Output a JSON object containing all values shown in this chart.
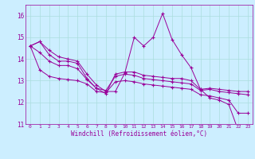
{
  "background_color": "#cceeff",
  "grid_color": "#aadddd",
  "line_color": "#990099",
  "marker": "+",
  "xlabel": "Windchill (Refroidissement éolien,°C)",
  "xlabel_color": "#990099",
  "xlim": [
    -0.5,
    23.5
  ],
  "ylim": [
    11,
    16.5
  ],
  "yticks": [
    11,
    12,
    13,
    14,
    15,
    16
  ],
  "xticks": [
    0,
    1,
    2,
    3,
    4,
    5,
    6,
    7,
    8,
    9,
    10,
    11,
    12,
    13,
    14,
    15,
    16,
    17,
    18,
    19,
    20,
    21,
    22,
    23
  ],
  "series": [
    [
      14.6,
      14.8,
      14.4,
      14.1,
      14.0,
      13.9,
      13.3,
      12.8,
      12.5,
      12.5,
      13.35,
      15.0,
      14.6,
      15.0,
      16.1,
      14.9,
      14.2,
      13.6,
      12.6,
      12.2,
      12.1,
      11.9,
      10.7,
      10.6
    ],
    [
      14.6,
      14.8,
      14.2,
      13.9,
      13.9,
      13.8,
      13.1,
      12.65,
      12.4,
      13.3,
      13.4,
      13.4,
      13.25,
      13.2,
      13.15,
      13.1,
      13.1,
      13.0,
      12.6,
      12.65,
      12.6,
      12.55,
      12.5,
      12.5
    ],
    [
      14.6,
      14.3,
      13.9,
      13.7,
      13.7,
      13.55,
      13.05,
      12.65,
      12.55,
      13.2,
      13.3,
      13.25,
      13.1,
      13.05,
      13.0,
      12.95,
      12.9,
      12.85,
      12.55,
      12.6,
      12.5,
      12.45,
      12.4,
      12.35
    ],
    [
      14.6,
      13.5,
      13.2,
      13.1,
      13.05,
      13.0,
      12.85,
      12.5,
      12.45,
      12.95,
      13.0,
      12.95,
      12.85,
      12.8,
      12.75,
      12.7,
      12.65,
      12.6,
      12.35,
      12.3,
      12.2,
      12.1,
      11.5,
      11.5
    ]
  ]
}
